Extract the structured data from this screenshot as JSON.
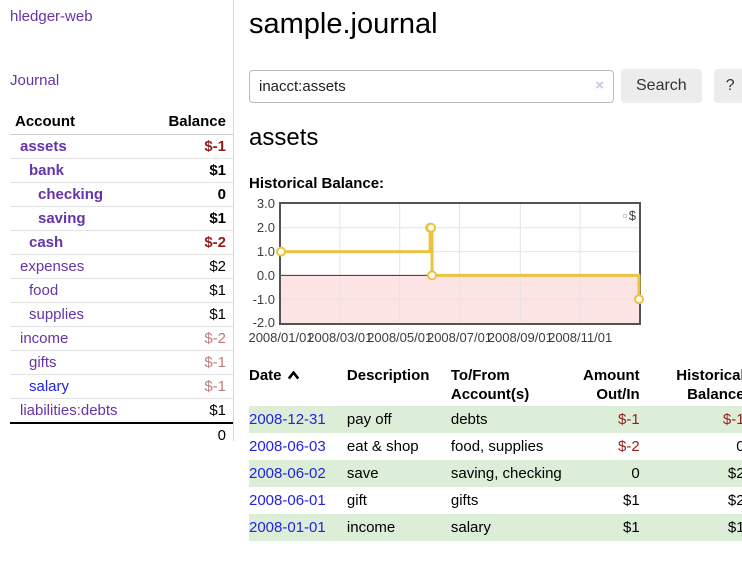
{
  "app": {
    "title": "hledger-web"
  },
  "sidebar": {
    "nav": {
      "journal_label": "Journal"
    },
    "accounts_table": {
      "headers": [
        "Account",
        "Balance"
      ],
      "rows": [
        {
          "name": "assets",
          "depth": 1,
          "bold": true,
          "balance": "$-1",
          "balance_color": "negative"
        },
        {
          "name": "bank",
          "depth": 2,
          "bold": true,
          "balance": "$1",
          "balance_color": "normal"
        },
        {
          "name": "checking",
          "depth": 3,
          "bold": true,
          "balance": "0",
          "balance_color": "normal"
        },
        {
          "name": "saving",
          "depth": 3,
          "bold": true,
          "balance": "$1",
          "balance_color": "normal"
        },
        {
          "name": "cash",
          "depth": 2,
          "bold": true,
          "balance": "$-2",
          "balance_color": "negative"
        },
        {
          "name": "expenses",
          "depth": 1,
          "bold": false,
          "balance": "$2",
          "balance_color": "normal"
        },
        {
          "name": "food",
          "depth": 2,
          "bold": false,
          "balance": "$1",
          "balance_color": "normal"
        },
        {
          "name": "supplies",
          "depth": 2,
          "bold": false,
          "balance": "$1",
          "balance_color": "normal"
        },
        {
          "name": "income",
          "depth": 1,
          "bold": false,
          "balance": "$-2",
          "balance_color": "negative-faded"
        },
        {
          "name": "gifts",
          "depth": 2,
          "bold": false,
          "balance": "$-1",
          "balance_color": "negative-faded"
        },
        {
          "name": "salary",
          "depth": 2,
          "bold": false,
          "link_color": "blue",
          "balance": "$-1",
          "balance_color": "negative-faded"
        },
        {
          "name": "liabilities:debts",
          "depth": 1,
          "bold": false,
          "balance": "$1",
          "balance_color": "normal"
        }
      ],
      "total": "0"
    }
  },
  "header": {
    "title": "sample.journal"
  },
  "search": {
    "value": "inacct:assets",
    "clear_icon": "×",
    "button_label": "Search",
    "help_label": "?"
  },
  "account_page": {
    "heading": "assets",
    "chart_label": "Historical Balance:"
  },
  "chart_data": {
    "type": "line",
    "step": true,
    "title": "Historical Balance",
    "series": [
      {
        "name": "$",
        "color": "#edc240",
        "points": [
          {
            "date": "2008-01-01",
            "value": 1
          },
          {
            "date": "2008-06-01",
            "value": 2
          },
          {
            "date": "2008-06-02",
            "value": 2
          },
          {
            "date": "2008-06-03",
            "value": 0
          },
          {
            "date": "2008-12-31",
            "value": -1
          }
        ]
      }
    ],
    "xrange": [
      "2008-01-01",
      "2008-12-31"
    ],
    "ylim": [
      -2,
      3
    ],
    "yticks": [
      {
        "label": "3.0",
        "value": 3
      },
      {
        "label": "2.0",
        "value": 2
      },
      {
        "label": "1.0",
        "value": 1
      },
      {
        "label": "0.0",
        "value": 0
      },
      {
        "label": "-1.0",
        "value": -1
      },
      {
        "label": "-2.0",
        "value": -2
      }
    ],
    "xticks": [
      {
        "label": "2008/01/01",
        "date": "2008-01-01"
      },
      {
        "label": "2008/03/01",
        "date": "2008-03-01"
      },
      {
        "label": "2008/05/01",
        "date": "2008-05-01"
      },
      {
        "label": "2008/07/01",
        "date": "2008-07-01"
      },
      {
        "label": "2008/09/01",
        "date": "2008-09-01"
      },
      {
        "label": "2008/11/01",
        "date": "2008-11-01"
      }
    ],
    "negative_region_color": "#fce4e4",
    "zero_line_color": "#8b1010",
    "grid_color": "#e4e4e4",
    "legend": {
      "label": "$",
      "swatch_color": "#edc240",
      "position": "top-right"
    }
  },
  "register_table": {
    "headers": [
      {
        "label": "Date",
        "sorted": "ascending"
      },
      {
        "label": "Description"
      },
      {
        "label": "To/From Account(s)"
      },
      {
        "label": "Amount Out/In",
        "align": "right"
      },
      {
        "label": "Historical Balance",
        "align": "right"
      }
    ],
    "rows": [
      {
        "date": "2008-12-31",
        "description": "pay off",
        "accounts": "debts",
        "amount": "$-1",
        "amount_negative": true,
        "balance": "$-1",
        "balance_negative": true,
        "highlight": true
      },
      {
        "date": "2008-06-03",
        "description": "eat & shop",
        "accounts": "food, supplies",
        "amount": "$-2",
        "amount_negative": true,
        "balance": "0",
        "balance_negative": false,
        "highlight": false
      },
      {
        "date": "2008-06-02",
        "description": "save",
        "accounts": "saving, checking",
        "amount": "0",
        "amount_negative": false,
        "balance": "$2",
        "balance_negative": false,
        "highlight": true
      },
      {
        "date": "2008-06-01",
        "description": "gift",
        "accounts": "gifts",
        "amount": "$1",
        "amount_negative": false,
        "balance": "$2",
        "balance_negative": false,
        "highlight": false
      },
      {
        "date": "2008-01-01",
        "description": "income",
        "accounts": "salary",
        "amount": "$1",
        "amount_negative": false,
        "balance": "$1",
        "balance_negative": false,
        "highlight": true
      }
    ]
  }
}
